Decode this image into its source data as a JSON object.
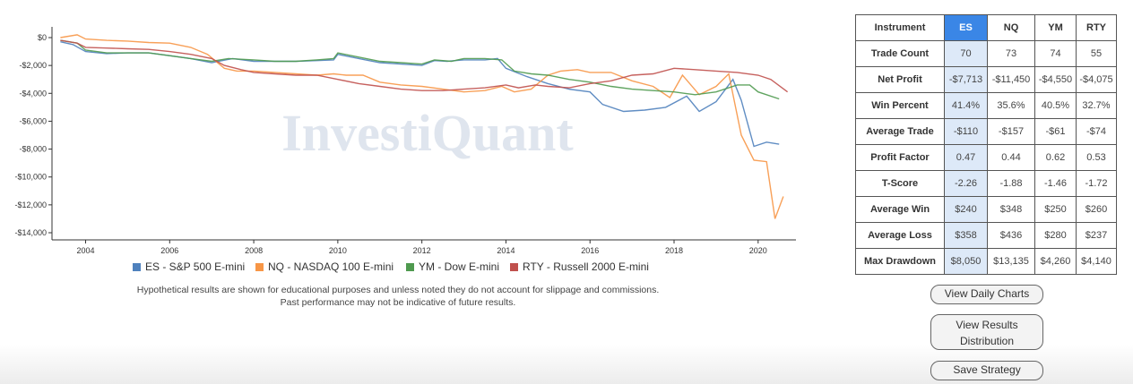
{
  "chart_data": {
    "type": "line",
    "watermark": "InvestiQuant",
    "y_ticks": [
      "$0",
      "-$2,000",
      "-$4,000",
      "-$6,000",
      "-$8,000",
      "-$10,000",
      "-$12,000",
      "-$14,000"
    ],
    "x_ticks": [
      "2004",
      "2006",
      "2008",
      "2010",
      "2012",
      "2014",
      "2016",
      "2018",
      "2020"
    ],
    "xlim": [
      2003.2,
      2020.9
    ],
    "ylim": [
      -14000,
      0
    ],
    "grid": false,
    "legend_placement": "bottom",
    "series": [
      {
        "name": "ES - S&P 500 E-mini",
        "color": "#4f81bd",
        "points": [
          [
            2003.4,
            -300
          ],
          [
            2003.7,
            -500
          ],
          [
            2004,
            -1000
          ],
          [
            2004.5,
            -1150
          ],
          [
            2005,
            -1100
          ],
          [
            2005.5,
            -1100
          ],
          [
            2006,
            -1300
          ],
          [
            2006.5,
            -1500
          ],
          [
            2007,
            -1800
          ],
          [
            2007.5,
            -1500
          ],
          [
            2008,
            -1700
          ],
          [
            2008.5,
            -1700
          ],
          [
            2009,
            -1700
          ],
          [
            2009.5,
            -1650
          ],
          [
            2009.9,
            -1600
          ],
          [
            2010,
            -1200
          ],
          [
            2010.5,
            -1500
          ],
          [
            2011,
            -1800
          ],
          [
            2011.5,
            -1900
          ],
          [
            2012,
            -2000
          ],
          [
            2012.3,
            -1650
          ],
          [
            2012.6,
            -1700
          ],
          [
            2013,
            -1600
          ],
          [
            2013.5,
            -1600
          ],
          [
            2013.8,
            -1500
          ],
          [
            2014,
            -2200
          ],
          [
            2014.5,
            -2800
          ],
          [
            2015,
            -3300
          ],
          [
            2015.5,
            -3700
          ],
          [
            2016,
            -3900
          ],
          [
            2016.3,
            -4800
          ],
          [
            2016.8,
            -5300
          ],
          [
            2017.3,
            -5200
          ],
          [
            2017.8,
            -5000
          ],
          [
            2018.3,
            -4200
          ],
          [
            2018.6,
            -5300
          ],
          [
            2019,
            -4600
          ],
          [
            2019.4,
            -3000
          ],
          [
            2019.6,
            -4500
          ],
          [
            2019.9,
            -7800
          ],
          [
            2020.2,
            -7500
          ],
          [
            2020.5,
            -7650
          ]
        ]
      },
      {
        "name": "NQ - NASDAQ 100 E-mini",
        "color": "#f79646",
        "points": [
          [
            2003.4,
            0
          ],
          [
            2003.8,
            200
          ],
          [
            2004,
            -100
          ],
          [
            2004.5,
            -200
          ],
          [
            2005,
            -250
          ],
          [
            2005.5,
            -350
          ],
          [
            2006,
            -400
          ],
          [
            2006.5,
            -700
          ],
          [
            2006.9,
            -1200
          ],
          [
            2007.3,
            -2200
          ],
          [
            2007.6,
            -2400
          ],
          [
            2008,
            -2400
          ],
          [
            2008.5,
            -2500
          ],
          [
            2009,
            -2600
          ],
          [
            2009.5,
            -2700
          ],
          [
            2009.9,
            -2600
          ],
          [
            2010.2,
            -2700
          ],
          [
            2010.6,
            -2700
          ],
          [
            2011,
            -3200
          ],
          [
            2011.5,
            -3400
          ],
          [
            2012,
            -3500
          ],
          [
            2012.5,
            -3700
          ],
          [
            2013,
            -3900
          ],
          [
            2013.5,
            -3800
          ],
          [
            2013.9,
            -3500
          ],
          [
            2014.2,
            -3900
          ],
          [
            2014.6,
            -3700
          ],
          [
            2015,
            -2700
          ],
          [
            2015.3,
            -2400
          ],
          [
            2015.7,
            -2300
          ],
          [
            2016,
            -2500
          ],
          [
            2016.5,
            -2500
          ],
          [
            2017,
            -3100
          ],
          [
            2017.5,
            -3500
          ],
          [
            2017.9,
            -4300
          ],
          [
            2018.2,
            -2700
          ],
          [
            2018.6,
            -4100
          ],
          [
            2019,
            -3500
          ],
          [
            2019.3,
            -2600
          ],
          [
            2019.6,
            -7000
          ],
          [
            2019.9,
            -8800
          ],
          [
            2020.2,
            -8900
          ],
          [
            2020.4,
            -13000
          ],
          [
            2020.6,
            -11400
          ]
        ]
      },
      {
        "name": "YM - Dow E-mini",
        "color": "#4f9a4f",
        "points": [
          [
            2003.4,
            -200
          ],
          [
            2003.8,
            -400
          ],
          [
            2004,
            -900
          ],
          [
            2004.5,
            -1100
          ],
          [
            2005,
            -1100
          ],
          [
            2005.5,
            -1100
          ],
          [
            2006,
            -1300
          ],
          [
            2006.5,
            -1500
          ],
          [
            2007,
            -1700
          ],
          [
            2007.4,
            -1500
          ],
          [
            2008,
            -1600
          ],
          [
            2008.5,
            -1700
          ],
          [
            2009,
            -1700
          ],
          [
            2009.5,
            -1600
          ],
          [
            2009.9,
            -1500
          ],
          [
            2010,
            -1100
          ],
          [
            2010.5,
            -1400
          ],
          [
            2011,
            -1700
          ],
          [
            2011.5,
            -1800
          ],
          [
            2012,
            -1900
          ],
          [
            2012.3,
            -1600
          ],
          [
            2012.7,
            -1700
          ],
          [
            2013,
            -1500
          ],
          [
            2013.5,
            -1500
          ],
          [
            2013.9,
            -1600
          ],
          [
            2014.2,
            -2400
          ],
          [
            2014.6,
            -2600
          ],
          [
            2015,
            -2700
          ],
          [
            2015.5,
            -3000
          ],
          [
            2016,
            -3200
          ],
          [
            2016.5,
            -3500
          ],
          [
            2017,
            -3700
          ],
          [
            2017.5,
            -3800
          ],
          [
            2018,
            -3900
          ],
          [
            2018.5,
            -4100
          ],
          [
            2019,
            -3900
          ],
          [
            2019.5,
            -3400
          ],
          [
            2019.8,
            -3400
          ],
          [
            2020,
            -3900
          ],
          [
            2020.5,
            -4400
          ]
        ]
      },
      {
        "name": "RTY - Russell 2000 E-mini",
        "color": "#c0504d",
        "points": [
          [
            2003.4,
            -200
          ],
          [
            2003.8,
            -400
          ],
          [
            2004,
            -700
          ],
          [
            2004.5,
            -750
          ],
          [
            2005,
            -800
          ],
          [
            2005.5,
            -850
          ],
          [
            2006,
            -1000
          ],
          [
            2006.5,
            -1200
          ],
          [
            2007,
            -1500
          ],
          [
            2007.3,
            -2000
          ],
          [
            2007.7,
            -2300
          ],
          [
            2008,
            -2500
          ],
          [
            2008.5,
            -2600
          ],
          [
            2009,
            -2700
          ],
          [
            2009.5,
            -2700
          ],
          [
            2010,
            -3000
          ],
          [
            2010.5,
            -3300
          ],
          [
            2011,
            -3500
          ],
          [
            2011.5,
            -3700
          ],
          [
            2012,
            -3800
          ],
          [
            2012.5,
            -3800
          ],
          [
            2013,
            -3700
          ],
          [
            2013.5,
            -3600
          ],
          [
            2014,
            -3400
          ],
          [
            2014.3,
            -3600
          ],
          [
            2014.7,
            -3400
          ],
          [
            2015,
            -3500
          ],
          [
            2015.5,
            -3600
          ],
          [
            2016,
            -3300
          ],
          [
            2016.5,
            -3100
          ],
          [
            2017,
            -2700
          ],
          [
            2017.5,
            -2600
          ],
          [
            2018,
            -2200
          ],
          [
            2018.5,
            -2300
          ],
          [
            2019,
            -2400
          ],
          [
            2019.5,
            -2500
          ],
          [
            2020,
            -2700
          ],
          [
            2020.3,
            -3000
          ],
          [
            2020.7,
            -3900
          ]
        ]
      }
    ]
  },
  "legend": [
    {
      "label": "ES - S&P 500 E-mini",
      "color": "#4f81bd"
    },
    {
      "label": "NQ - NASDAQ 100 E-mini",
      "color": "#f79646"
    },
    {
      "label": "YM - Dow E-mini",
      "color": "#4f9a4f"
    },
    {
      "label": "RTY - Russell 2000 E-mini",
      "color": "#c0504d"
    }
  ],
  "disclaimer": {
    "line1": "Hypothetical results are shown for educational purposes and unless noted they do not account for slippage and commissions.",
    "line2": "Past performance may not be indicative of future results."
  },
  "table": {
    "header": {
      "instrument": "Instrument",
      "es": "ES",
      "nq": "NQ",
      "ym": "YM",
      "rty": "RTY"
    },
    "rows": [
      {
        "label": "Trade Count",
        "es": "70",
        "nq": "73",
        "ym": "74",
        "rty": "55"
      },
      {
        "label": "Net Profit",
        "es": "-$7,713",
        "nq": "-$11,450",
        "ym": "-$4,550",
        "rty": "-$4,075"
      },
      {
        "label": "Win Percent",
        "es": "41.4%",
        "nq": "35.6%",
        "ym": "40.5%",
        "rty": "32.7%"
      },
      {
        "label": "Average Trade",
        "es": "-$110",
        "nq": "-$157",
        "ym": "-$61",
        "rty": "-$74"
      },
      {
        "label": "Profit Factor",
        "es": "0.47",
        "nq": "0.44",
        "ym": "0.62",
        "rty": "0.53"
      },
      {
        "label": "T-Score",
        "es": "-2.26",
        "nq": "-1.88",
        "ym": "-1.46",
        "rty": "-1.72"
      },
      {
        "label": "Average Win",
        "es": "$240",
        "nq": "$348",
        "ym": "$250",
        "rty": "$260"
      },
      {
        "label": "Average Loss",
        "es": "$358",
        "nq": "$436",
        "ym": "$280",
        "rty": "$237"
      },
      {
        "label": "Max Drawdown",
        "es": "$8,050",
        "nq": "$13,135",
        "ym": "$4,260",
        "rty": "$4,140"
      }
    ]
  },
  "buttons": {
    "daily": "View Daily Charts",
    "distribution_line1": "View Results",
    "distribution_line2": "Distribution",
    "save": "Save Strategy"
  },
  "colors": {
    "selected_header": "#3a86e6",
    "selected_cell": "#dde9f8"
  }
}
